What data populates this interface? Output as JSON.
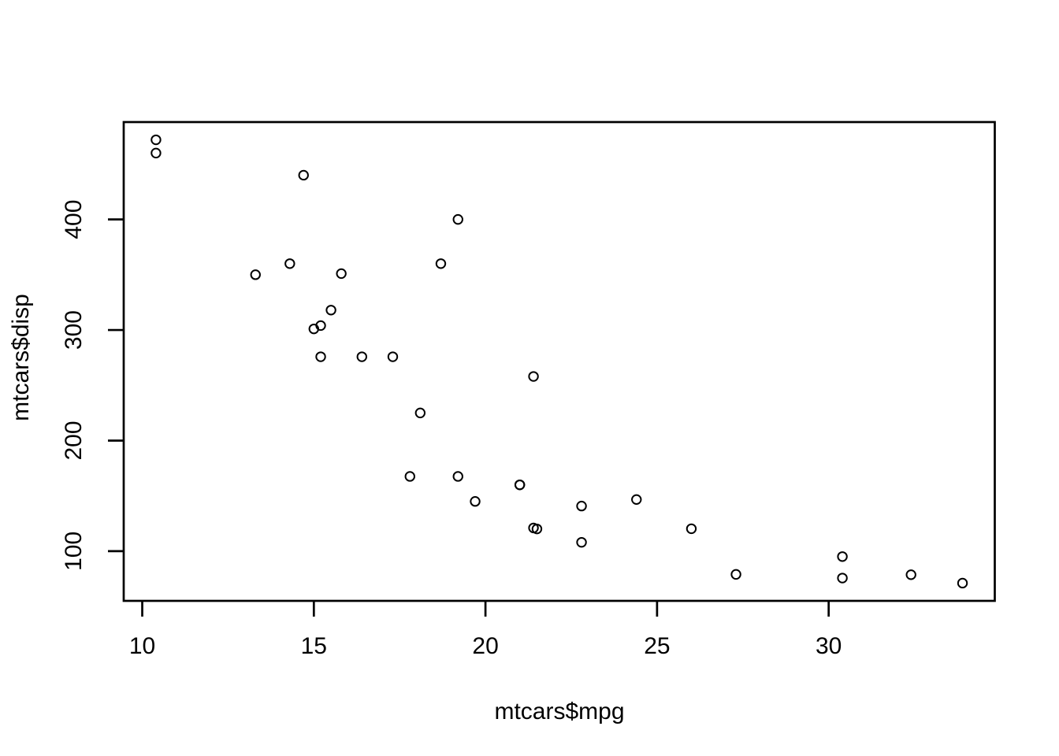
{
  "page": {
    "background_color": "#ffffff",
    "foreground_color": "#000000"
  },
  "chart_data": {
    "type": "scatter",
    "title": "",
    "xlabel": "mtcars$mpg",
    "ylabel": "mtcars$disp",
    "x_ticks": [
      10,
      15,
      20,
      25,
      30
    ],
    "y_ticks": [
      100,
      200,
      300,
      400
    ],
    "xlim": [
      9.46,
      34.84
    ],
    "ylim": [
      55.06,
      488.04
    ],
    "grid": false,
    "legend": false,
    "marker": "open-circle",
    "marker_color": "#000000",
    "axis_color": "#000000",
    "points": [
      [
        21.0,
        160.0
      ],
      [
        21.0,
        160.0
      ],
      [
        22.8,
        108.0
      ],
      [
        21.4,
        258.0
      ],
      [
        18.7,
        360.0
      ],
      [
        18.1,
        225.0
      ],
      [
        14.3,
        360.0
      ],
      [
        24.4,
        146.7
      ],
      [
        22.8,
        140.8
      ],
      [
        19.2,
        167.6
      ],
      [
        17.8,
        167.6
      ],
      [
        16.4,
        275.8
      ],
      [
        17.3,
        275.8
      ],
      [
        15.2,
        275.8
      ],
      [
        10.4,
        472.0
      ],
      [
        10.4,
        460.0
      ],
      [
        14.7,
        440.0
      ],
      [
        32.4,
        78.7
      ],
      [
        30.4,
        75.7
      ],
      [
        33.9,
        71.1
      ],
      [
        21.5,
        120.1
      ],
      [
        15.5,
        318.0
      ],
      [
        15.2,
        304.0
      ],
      [
        13.3,
        350.0
      ],
      [
        19.2,
        400.0
      ],
      [
        27.3,
        79.0
      ],
      [
        26.0,
        120.3
      ],
      [
        30.4,
        95.1
      ],
      [
        15.8,
        351.0
      ],
      [
        19.7,
        145.0
      ],
      [
        15.0,
        301.0
      ],
      [
        21.4,
        121.0
      ]
    ]
  }
}
